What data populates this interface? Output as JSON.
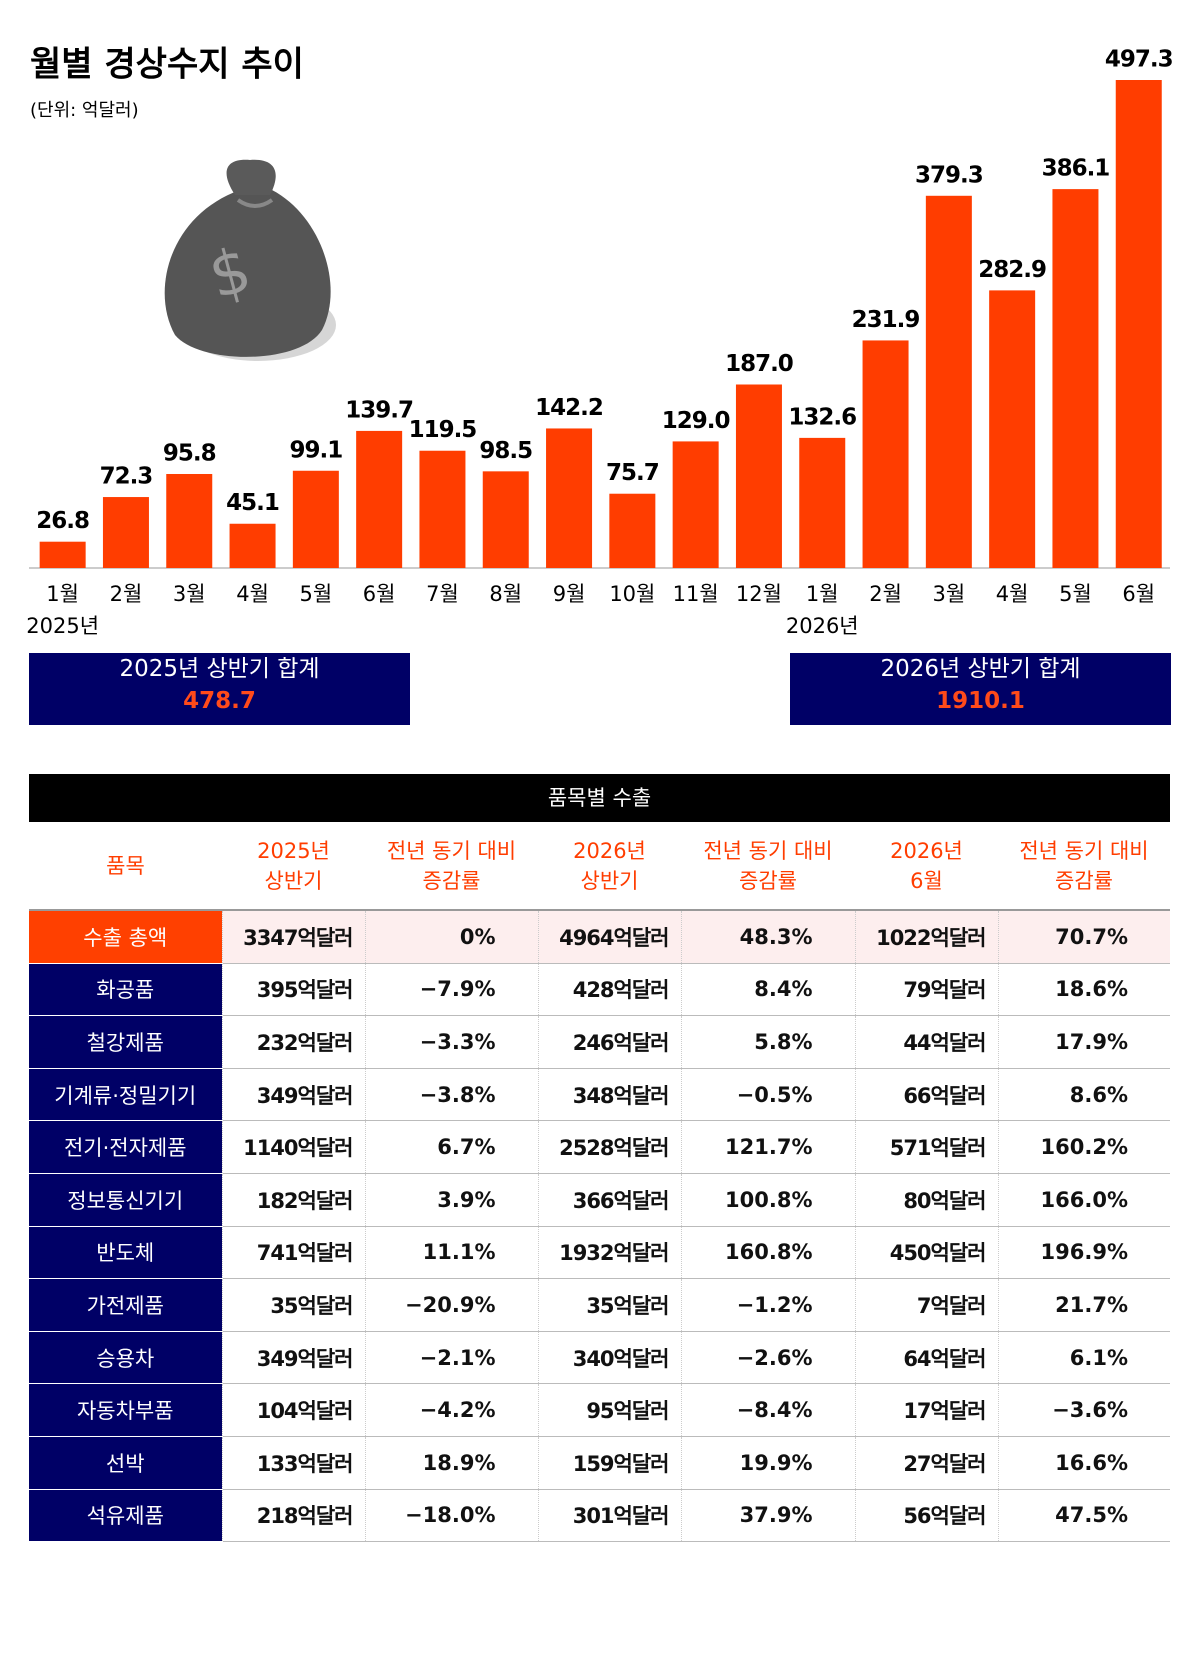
{
  "chart_data": {
    "type": "bar",
    "title": "월별 경상수지 추이",
    "subtitle": "(단위: 억달러)",
    "categories": [
      "1월",
      "2월",
      "3월",
      "4월",
      "5월",
      "6월",
      "7월",
      "8월",
      "9월",
      "10월",
      "11월",
      "12월",
      "1월",
      "2월",
      "3월",
      "4월",
      "5월",
      "6월"
    ],
    "year_labels": [
      "2025년",
      null,
      null,
      null,
      null,
      null,
      null,
      null,
      null,
      null,
      null,
      null,
      "2026년",
      null,
      null,
      null,
      null,
      null
    ],
    "values": [
      26.8,
      72.3,
      95.8,
      45.1,
      99.1,
      139.7,
      119.5,
      98.5,
      142.2,
      75.7,
      129.0,
      187.0,
      132.6,
      231.9,
      379.3,
      282.9,
      386.1,
      497.3
    ],
    "value_labels": [
      "26.8",
      "72.3",
      "95.8",
      "45.1",
      "99.1",
      "139.7",
      "119.5",
      "98.5",
      "142.2",
      "75.7",
      "129.0",
      "187.0",
      "132.6",
      "231.9",
      "379.3",
      "282.9",
      "386.1",
      "497.3"
    ],
    "color": "#ff3d00",
    "summaries": [
      {
        "label": "2025년 상반기 합계",
        "value": "478.7"
      },
      {
        "label": "2026년 상반기 합계",
        "value": "1910.1"
      }
    ]
  },
  "table": {
    "title": "품목별 수출",
    "header": [
      "품목",
      "2025년\n상반기",
      "전년 동기 대비\n증감률",
      "2026년\n상반기",
      "전년 동기 대비\n증감률",
      "2026년\n6월",
      "전년 동기 대비\n증감률"
    ],
    "rows": [
      [
        "수출 총액",
        "3347억달러",
        "0%",
        "4964억달러",
        "48.3%",
        "1022억달러",
        "70.7%"
      ],
      [
        "화공품",
        "395억달러",
        "−7.9%",
        "428억달러",
        "8.4%",
        "79억달러",
        "18.6%"
      ],
      [
        "철강제품",
        "232억달러",
        "−3.3%",
        "246억달러",
        "5.8%",
        "44억달러",
        "17.9%"
      ],
      [
        "기계류·정밀기기",
        "349억달러",
        "−3.8%",
        "348억달러",
        "−0.5%",
        "66억달러",
        "8.6%"
      ],
      [
        "전기·전자제품",
        "1140억달러",
        "6.7%",
        "2528억달러",
        "121.7%",
        "571억달러",
        "160.2%"
      ],
      [
        "정보통신기기",
        "182억달러",
        "3.9%",
        "366억달러",
        "100.8%",
        "80억달러",
        "166.0%"
      ],
      [
        "반도체",
        "741억달러",
        "11.1%",
        "1932억달러",
        "160.8%",
        "450억달러",
        "196.9%"
      ],
      [
        "가전제품",
        "35억달러",
        "−20.9%",
        "35억달러",
        "−1.2%",
        "7억달러",
        "21.7%"
      ],
      [
        "승용차",
        "349억달러",
        "−2.1%",
        "340억달러",
        "−2.6%",
        "64억달러",
        "6.1%"
      ],
      [
        "자동차부품",
        "104억달러",
        "−4.2%",
        "95억달러",
        "−8.4%",
        "17억달러",
        "−3.6%"
      ],
      [
        "선박",
        "133억달러",
        "18.9%",
        "159억달러",
        "19.9%",
        "27억달러",
        "16.6%"
      ],
      [
        "석유제품",
        "218억달러",
        "−18.0%",
        "301억달러",
        "37.9%",
        "56억달러",
        "47.5%"
      ]
    ]
  }
}
